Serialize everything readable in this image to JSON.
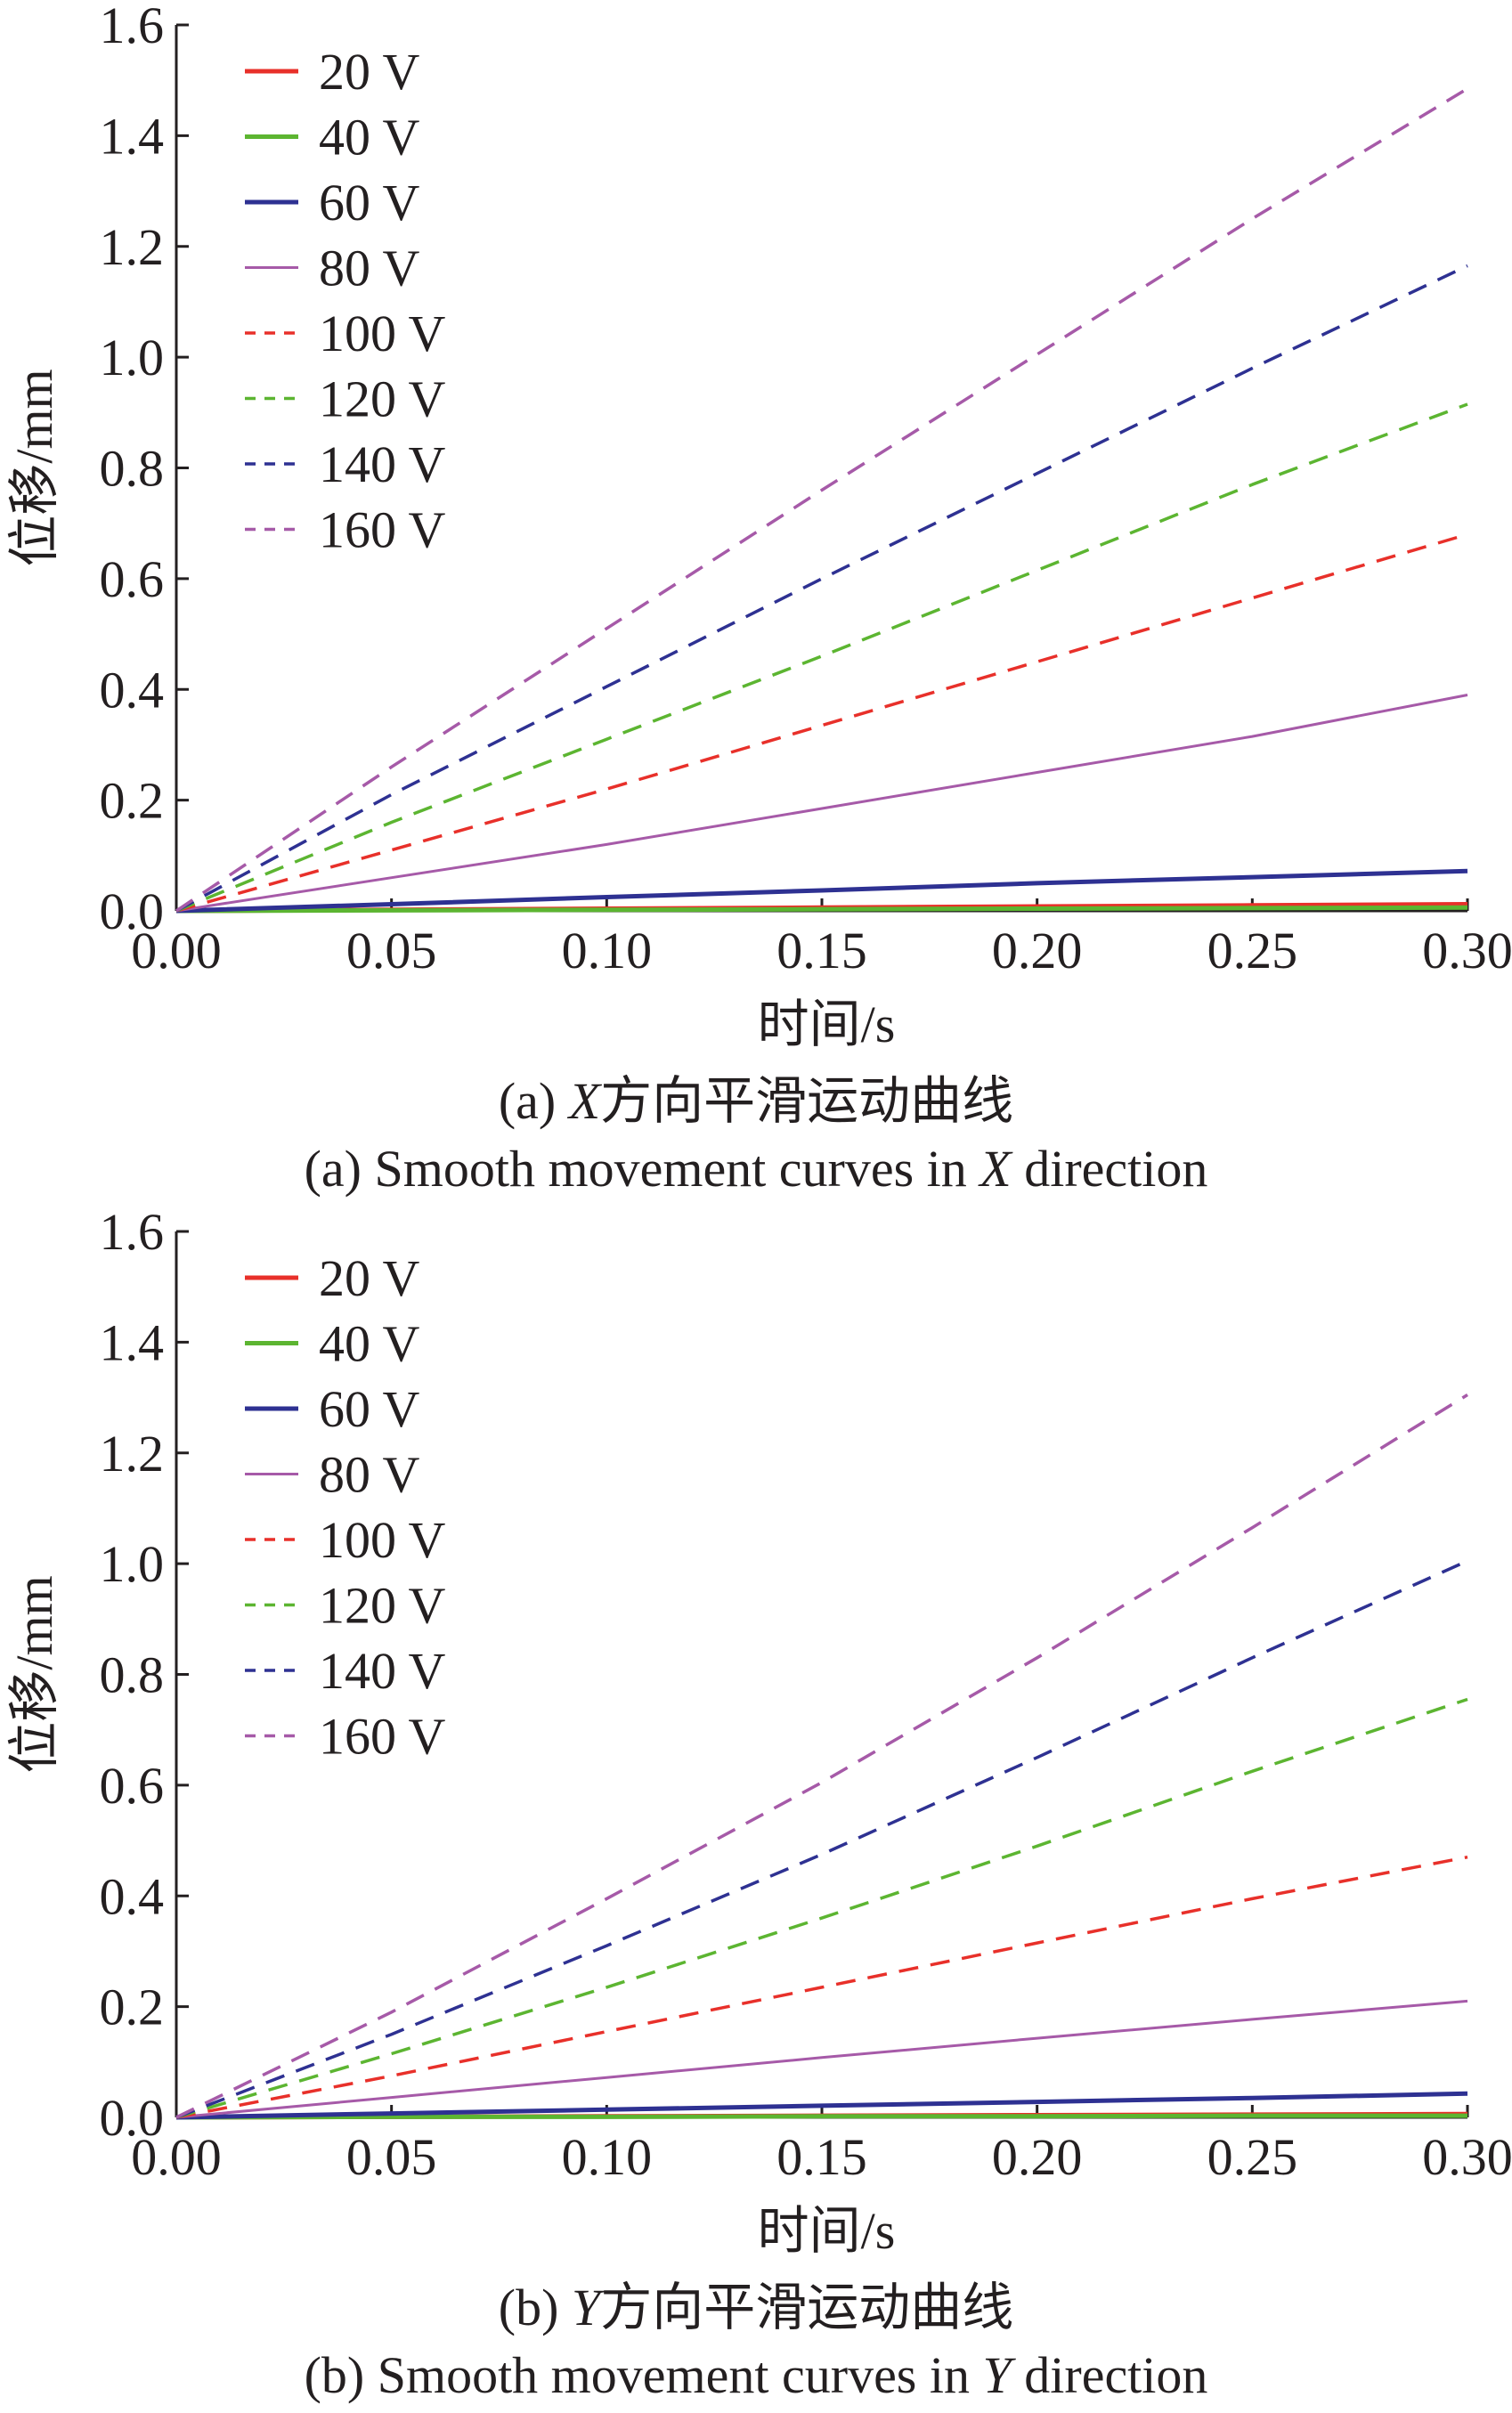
{
  "chart_data": [
    {
      "panel": "a",
      "type": "line",
      "title": "",
      "xlabel": "时间/s",
      "ylabel": "位移/mm",
      "xlim": [
        0,
        0.3
      ],
      "ylim": [
        0,
        1.6
      ],
      "xticks": [
        "0.00",
        "0.05",
        "0.10",
        "0.15",
        "0.20",
        "0.25",
        "0.30"
      ],
      "yticks": [
        "0.0",
        "0.2",
        "0.4",
        "0.6",
        "0.8",
        "1.0",
        "1.2",
        "1.4",
        "1.6"
      ],
      "legend_position": "top-left",
      "caption_zh_prefix": "(a) ",
      "caption_zh_italic": "X",
      "caption_zh_suffix": "方向平滑运动曲线",
      "caption_en_prefix": "(a) Smooth movement curves in ",
      "caption_en_italic": "X",
      "caption_en_suffix": " direction",
      "x": [
        0.0,
        0.05,
        0.1,
        0.15,
        0.2,
        0.25,
        0.3
      ],
      "series": [
        {
          "name": "20 V",
          "color": "#e8302a",
          "style": "solid",
          "values": [
            0,
            0.002,
            0.004,
            0.006,
            0.008,
            0.01,
            0.012
          ]
        },
        {
          "name": "40 V",
          "color": "#5cb531",
          "style": "solid",
          "values": [
            0,
            0.001,
            0.002,
            0.003,
            0.004,
            0.005,
            0.006
          ]
        },
        {
          "name": "60 V",
          "color": "#2e3192",
          "style": "solid",
          "values": [
            0,
            0.012,
            0.025,
            0.037,
            0.05,
            0.061,
            0.072
          ]
        },
        {
          "name": "80 V",
          "color": "#a65aa8",
          "style": "solid",
          "values": [
            0,
            0.06,
            0.12,
            0.185,
            0.25,
            0.315,
            0.39
          ]
        },
        {
          "name": "100 V",
          "color": "#e8302a",
          "style": "dashed",
          "values": [
            0,
            0.11,
            0.22,
            0.335,
            0.45,
            0.565,
            0.68
          ]
        },
        {
          "name": "120 V",
          "color": "#5cb531",
          "style": "dashed",
          "values": [
            0,
            0.16,
            0.31,
            0.46,
            0.615,
            0.77,
            0.915
          ]
        },
        {
          "name": "140 V",
          "color": "#2e3192",
          "style": "dashed",
          "values": [
            0,
            0.21,
            0.405,
            0.6,
            0.79,
            0.98,
            1.165
          ]
        },
        {
          "name": "160 V",
          "color": "#a65aa8",
          "style": "dashed",
          "values": [
            0,
            0.26,
            0.51,
            0.76,
            1.005,
            1.25,
            1.485
          ]
        }
      ]
    },
    {
      "panel": "b",
      "type": "line",
      "title": "",
      "xlabel": "时间/s",
      "ylabel": "位移/mm",
      "xlim": [
        0,
        0.3
      ],
      "ylim": [
        0,
        1.6
      ],
      "xticks": [
        "0.00",
        "0.05",
        "0.10",
        "0.15",
        "0.20",
        "0.25",
        "0.30"
      ],
      "yticks": [
        "0.0",
        "0.2",
        "0.4",
        "0.6",
        "0.8",
        "1.0",
        "1.2",
        "1.4",
        "1.6"
      ],
      "legend_position": "top-left",
      "caption_zh_prefix": "(b) ",
      "caption_zh_italic": "Y",
      "caption_zh_suffix": "方向平滑运动曲线",
      "caption_en_prefix": "(b) Smooth movement curves in ",
      "caption_en_italic": "Y",
      "caption_en_suffix": " direction",
      "x": [
        0.0,
        0.05,
        0.1,
        0.15,
        0.2,
        0.25,
        0.3
      ],
      "series": [
        {
          "name": "20 V",
          "color": "#e8302a",
          "style": "solid",
          "values": [
            0,
            0.001,
            0.002,
            0.003,
            0.004,
            0.005,
            0.006
          ]
        },
        {
          "name": "40 V",
          "color": "#5cb531",
          "style": "solid",
          "values": [
            0,
            0.001,
            0.001,
            0.002,
            0.002,
            0.003,
            0.003
          ]
        },
        {
          "name": "60 V",
          "color": "#2e3192",
          "style": "solid",
          "values": [
            0,
            0.007,
            0.014,
            0.021,
            0.028,
            0.035,
            0.043
          ]
        },
        {
          "name": "80 V",
          "color": "#a65aa8",
          "style": "solid",
          "values": [
            0,
            0.036,
            0.072,
            0.108,
            0.143,
            0.177,
            0.21
          ]
        },
        {
          "name": "100 V",
          "color": "#e8302a",
          "style": "dashed",
          "values": [
            0,
            0.075,
            0.155,
            0.235,
            0.315,
            0.395,
            0.47
          ]
        },
        {
          "name": "120 V",
          "color": "#5cb531",
          "style": "dashed",
          "values": [
            0,
            0.115,
            0.235,
            0.36,
            0.49,
            0.625,
            0.755
          ]
        },
        {
          "name": "140 V",
          "color": "#2e3192",
          "style": "dashed",
          "values": [
            0,
            0.15,
            0.31,
            0.475,
            0.65,
            0.83,
            1.005
          ]
        },
        {
          "name": "160 V",
          "color": "#a65aa8",
          "style": "dashed",
          "values": [
            0,
            0.19,
            0.395,
            0.605,
            0.83,
            1.065,
            1.305
          ]
        }
      ]
    }
  ]
}
